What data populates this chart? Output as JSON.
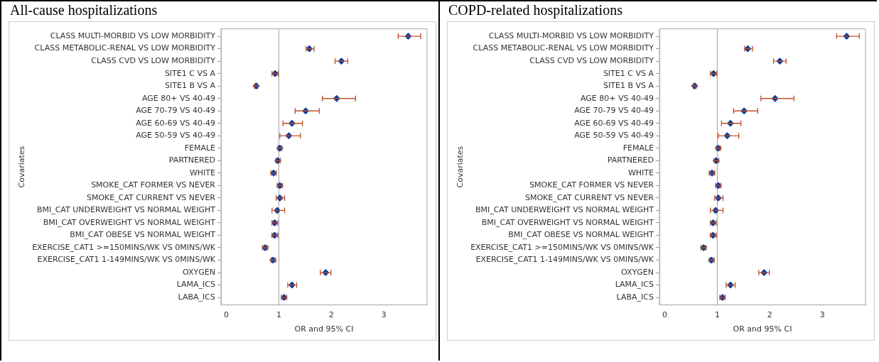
{
  "chart_data": [
    {
      "type": "scatter",
      "title": "All-cause hospitalizations",
      "xlabel": "OR and 95% CI",
      "ylabel": "Covariates",
      "orientation": "horizontal",
      "categories": [
        "CLASS MULTI-MORBID VS LOW MORBIDITY",
        "CLASS METABOLIC-RENAL VS LOW MORBIDITY",
        "CLASS CVD VS LOW MORBIDITY",
        "SITE1 C VS A",
        "SITE1 B VS A",
        "AGE 80+ VS 40-49",
        "AGE 70-79 VS 40-49",
        "AGE 60-69 VS 40-49",
        "AGE 50-59 VS 40-49",
        "FEMALE",
        "PARTNERED",
        "WHITE",
        "SMOKE_CAT FORMER VS NEVER",
        "SMOKE_CAT CURRENT VS NEVER",
        "BMI_CAT UNDERWEIGHT VS NORMAL WEIGHT",
        "BMI_CAT OVERWEIGHT VS NORMAL WEIGHT",
        "BMI_CAT OBESE VS NORMAL WEIGHT",
        "EXERCISE_CAT1 >=150MINS/WK VS 0MINS/WK",
        "EXERCISE_CAT1 1-149MINS/WK VS 0MINS/WK",
        "OXYGEN",
        "LAMA_ICS",
        "LABA_ICS"
      ],
      "series": [
        {
          "color": "#0a3c9a",
          "values": [
            3.46,
            1.58,
            2.19,
            0.93,
            0.57,
            2.1,
            1.51,
            1.25,
            1.19,
            1.02,
            0.98,
            0.9,
            1.02,
            1.02,
            0.97,
            0.92,
            0.92,
            0.74,
            0.89,
            1.89,
            1.25,
            1.1
          ],
          "errors": [
            [
              3.27,
              3.7
            ],
            [
              1.52,
              1.67
            ],
            [
              2.07,
              2.31
            ],
            [
              0.87,
              0.99
            ],
            [
              0.54,
              0.6
            ],
            [
              1.83,
              2.46
            ],
            [
              1.31,
              1.77
            ],
            [
              1.08,
              1.45
            ],
            [
              1.02,
              1.41
            ],
            [
              0.98,
              1.06
            ],
            [
              0.94,
              1.03
            ],
            [
              0.85,
              0.95
            ],
            [
              0.97,
              1.07
            ],
            [
              0.95,
              1.11
            ],
            [
              0.87,
              1.11
            ],
            [
              0.87,
              0.98
            ],
            [
              0.87,
              0.98
            ],
            [
              0.69,
              0.79
            ],
            [
              0.85,
              0.94
            ],
            [
              1.79,
              1.99
            ],
            [
              1.17,
              1.34
            ],
            [
              1.05,
              1.15
            ]
          ]
        }
      ],
      "marker": "diamond",
      "xlim": [
        -0.1,
        3.82
      ],
      "xticks": [
        0,
        1,
        2,
        3
      ],
      "grid": false,
      "legend": false,
      "ref_lines": [
        {
          "axis": "x",
          "value": 1,
          "color": "#a0a0a0"
        }
      ]
    },
    {
      "type": "scatter",
      "title": "COPD-related hospitalizations",
      "xlabel": "OR and 95% CI",
      "ylabel": "Covariates",
      "orientation": "horizontal",
      "categories": [
        "CLASS MULTI-MORBID VS LOW MORBIDITY",
        "CLASS METABOLIC-RENAL VS LOW MORBIDITY",
        "CLASS CVD VS LOW MORBIDITY",
        "SITE1 C VS A",
        "SITE1 B VS A",
        "AGE 80+ VS 40-49",
        "AGE 70-79 VS 40-49",
        "AGE 60-69 VS 40-49",
        "AGE 50-59 VS 40-49",
        "FEMALE",
        "PARTNERED",
        "WHITE",
        "SMOKE_CAT FORMER VS NEVER",
        "SMOKE_CAT CURRENT VS NEVER",
        "BMI_CAT UNDERWEIGHT VS NORMAL WEIGHT",
        "BMI_CAT OVERWEIGHT VS NORMAL WEIGHT",
        "BMI_CAT OBESE VS NORMAL WEIGHT",
        "EXERCISE_CAT1 >=150MINS/WK VS 0MINS/WK",
        "EXERCISE_CAT1 1-149MINS/WK VS 0MINS/WK",
        "OXYGEN",
        "LAMA_ICS",
        "LABA_ICS"
      ],
      "series": [
        {
          "color": "#0a3c9a",
          "values": [
            3.46,
            1.58,
            2.19,
            0.93,
            0.57,
            2.1,
            1.51,
            1.25,
            1.19,
            1.02,
            0.98,
            0.9,
            1.02,
            1.02,
            0.97,
            0.92,
            0.92,
            0.74,
            0.89,
            1.89,
            1.25,
            1.1
          ],
          "errors": [
            [
              3.27,
              3.7
            ],
            [
              1.52,
              1.67
            ],
            [
              2.07,
              2.31
            ],
            [
              0.87,
              0.99
            ],
            [
              0.54,
              0.6
            ],
            [
              1.83,
              2.46
            ],
            [
              1.31,
              1.77
            ],
            [
              1.08,
              1.45
            ],
            [
              1.02,
              1.41
            ],
            [
              0.98,
              1.06
            ],
            [
              0.94,
              1.03
            ],
            [
              0.85,
              0.95
            ],
            [
              0.97,
              1.07
            ],
            [
              0.95,
              1.11
            ],
            [
              0.87,
              1.11
            ],
            [
              0.87,
              0.98
            ],
            [
              0.87,
              0.98
            ],
            [
              0.69,
              0.79
            ],
            [
              0.85,
              0.94
            ],
            [
              1.79,
              1.99
            ],
            [
              1.17,
              1.34
            ],
            [
              1.05,
              1.15
            ]
          ]
        }
      ],
      "marker": "diamond",
      "xlim": [
        -0.1,
        3.82
      ],
      "xticks": [
        0,
        1,
        2,
        3
      ],
      "grid": false,
      "legend": false,
      "ref_lines": [
        {
          "axis": "x",
          "value": 1,
          "color": "#a0a0a0"
        }
      ]
    }
  ]
}
